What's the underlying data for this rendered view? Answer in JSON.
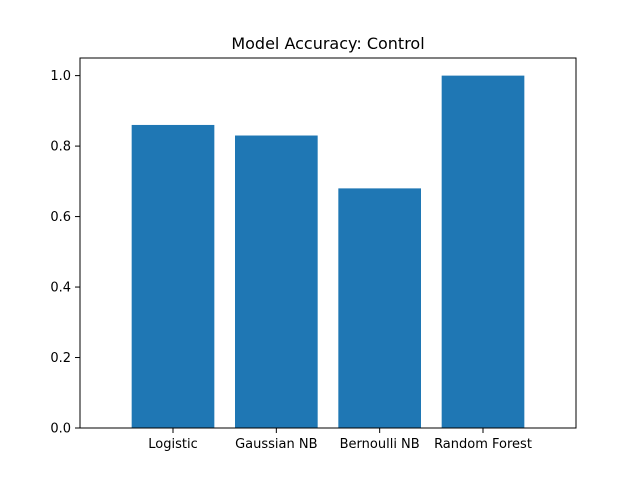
{
  "chart_data": {
    "type": "bar",
    "title": "Model Accuracy: Control",
    "xlabel": "",
    "ylabel": "",
    "categories": [
      "Logistic",
      "Gaussian NB",
      "Bernoulli NB",
      "Random Forest"
    ],
    "values": [
      0.86,
      0.83,
      0.68,
      1.0
    ],
    "ylim": [
      0,
      1.05
    ],
    "yticks": [
      "0.0",
      "0.2",
      "0.4",
      "0.6",
      "0.8",
      "1.0"
    ],
    "ytick_values": [
      0,
      0.2,
      0.4,
      0.6,
      0.8,
      1.0
    ],
    "grid": false,
    "bar_color": "#1f77b4"
  }
}
